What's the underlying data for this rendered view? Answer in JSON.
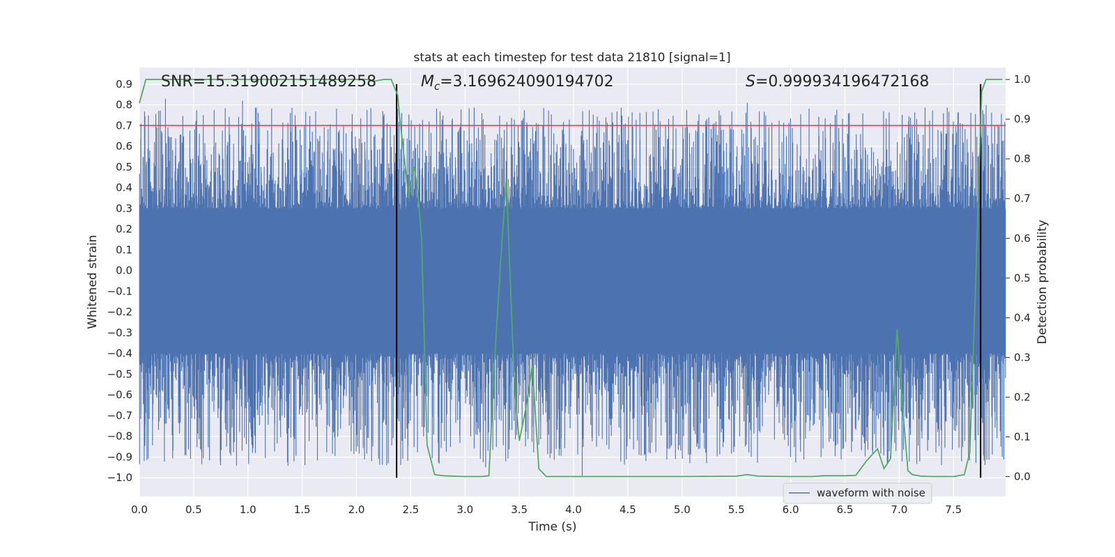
{
  "chart_data": {
    "type": "line",
    "title": "stats at each timestep for test data 21810 [signal=1]",
    "xlabel": "Time (s)",
    "ylabel": "Whitened strain",
    "y2label": "Detection probability",
    "xlim": [
      0.0,
      7.98
    ],
    "ylim": [
      -1.09,
      0.98
    ],
    "y2lim": [
      -0.05,
      1.03
    ],
    "xticks": [
      0.0,
      0.5,
      1.0,
      1.5,
      2.0,
      2.5,
      3.0,
      3.5,
      4.0,
      4.5,
      5.0,
      5.5,
      6.0,
      6.5,
      7.0,
      7.5
    ],
    "yticks": [
      0.9,
      0.8,
      0.7,
      0.6,
      0.5,
      0.4,
      0.3,
      0.2,
      0.1,
      0.0,
      -0.1,
      -0.2,
      -0.3,
      -0.4,
      -0.5,
      -0.6,
      -0.7,
      -0.8,
      -0.9,
      -1.0
    ],
    "y2ticks": [
      0.0,
      0.1,
      0.2,
      0.3,
      0.4,
      0.5,
      0.6,
      0.7,
      0.8,
      0.9,
      1.0
    ],
    "grid": true,
    "legend_position": "lower-right",
    "annotations": {
      "snr": "SNR=15.319002151489258",
      "mc_symbol": "M",
      "mc_sub": "c",
      "mc_value": "=3.169624090194702",
      "s_symbol": "S",
      "s_value": "=0.999934196472168"
    },
    "series": [
      {
        "name": "waveform with noise",
        "axis": "left",
        "color": "#4c72b0",
        "style": "dense noise, core band about -0.4 to 0.3 with spikes reaching roughly -0.99 to 0.83",
        "envelope": {
          "core_low": -0.4,
          "core_high": 0.3,
          "min": -0.99,
          "max": 0.83
        },
        "notable_spikes": [
          {
            "x": 0.42,
            "y": -0.89
          },
          {
            "x": 0.24,
            "y": 0.83
          },
          {
            "x": 0.95,
            "y": 0.82
          },
          {
            "x": 2.14,
            "y": -0.92
          },
          {
            "x": 3.19,
            "y": -0.95
          },
          {
            "x": 4.08,
            "y": -0.99
          },
          {
            "x": 5.6,
            "y": 0.81
          },
          {
            "x": 7.8,
            "y": 0.8
          }
        ]
      },
      {
        "axis": "right",
        "color": "#55a868",
        "x": [
          0.0,
          0.06,
          0.2,
          0.5,
          1.0,
          1.5,
          2.0,
          2.1,
          2.15,
          2.25,
          2.32,
          2.38,
          2.4,
          2.45,
          2.48,
          2.5,
          2.53,
          2.56,
          2.6,
          2.65,
          2.72,
          2.8,
          3.0,
          3.15,
          3.22,
          3.27,
          3.33,
          3.38,
          3.43,
          3.46,
          3.5,
          3.56,
          3.62,
          3.68,
          3.75,
          3.85,
          4.0,
          4.5,
          5.0,
          5.5,
          5.6,
          5.7,
          6.0,
          6.2,
          6.3,
          6.5,
          6.6,
          6.7,
          6.8,
          6.86,
          6.92,
          6.98,
          7.03,
          7.08,
          7.12,
          7.2,
          7.3,
          7.5,
          7.6,
          7.65,
          7.7,
          7.76,
          7.8,
          7.87,
          7.95
        ],
        "values": [
          0.94,
          1.0,
          1.0,
          1.0,
          1.0,
          1.0,
          1.0,
          1.0,
          0.995,
          1.0,
          1.0,
          0.96,
          0.9,
          0.78,
          0.7,
          0.74,
          0.78,
          0.73,
          0.6,
          0.08,
          0.005,
          0.002,
          0.0,
          0.0,
          0.002,
          0.28,
          0.55,
          0.75,
          0.4,
          0.21,
          0.09,
          0.17,
          0.28,
          0.02,
          0.0,
          0.0,
          0.0,
          0.0,
          0.0,
          0.001,
          0.005,
          0.001,
          0.0,
          0.0,
          0.002,
          0.002,
          0.003,
          0.04,
          0.07,
          0.02,
          0.045,
          0.37,
          0.18,
          0.015,
          0.005,
          0.001,
          0.0,
          0.0,
          0.005,
          0.06,
          0.45,
          0.97,
          1.0,
          1.0,
          1.0
        ]
      },
      {
        "axis": "left",
        "color": "#c44e52",
        "style": "horizontal threshold line",
        "y": 0.7
      },
      {
        "axis": "left",
        "color": "#000000",
        "style": "vertical marker lines",
        "x": [
          2.37,
          7.75
        ],
        "y_range": [
          -1.0,
          0.9
        ]
      }
    ]
  }
}
